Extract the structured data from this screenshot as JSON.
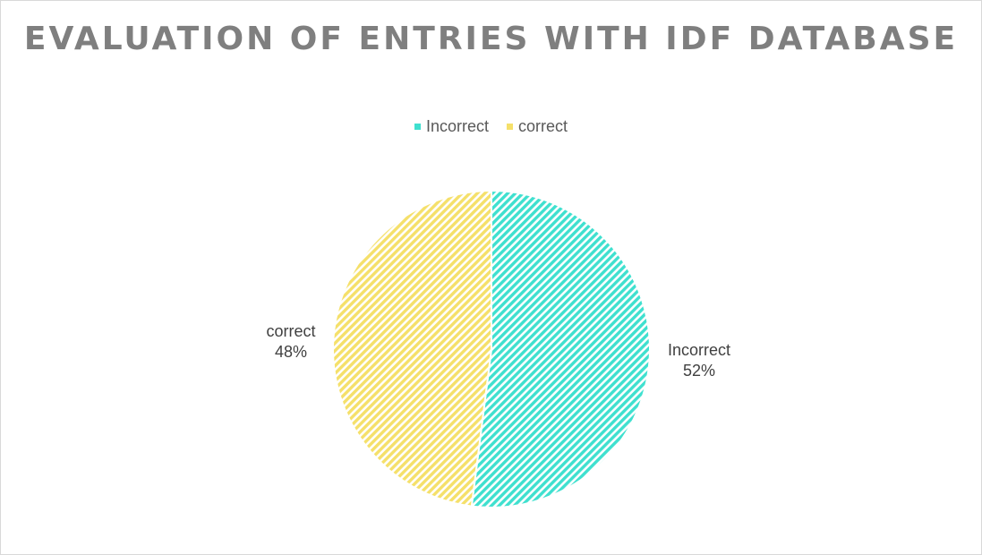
{
  "chart_data": {
    "type": "pie",
    "title": "EVALUATION OF ENTRIES WITH IDF DATABASE",
    "categories": [
      "Incorrect",
      "correct"
    ],
    "values": [
      52,
      48
    ],
    "value_labels": [
      "52%",
      "48%"
    ],
    "colors": [
      "#3fe0cf",
      "#f5e06a"
    ],
    "legend_position": "top",
    "fill_style": "diagonal-hatch"
  }
}
